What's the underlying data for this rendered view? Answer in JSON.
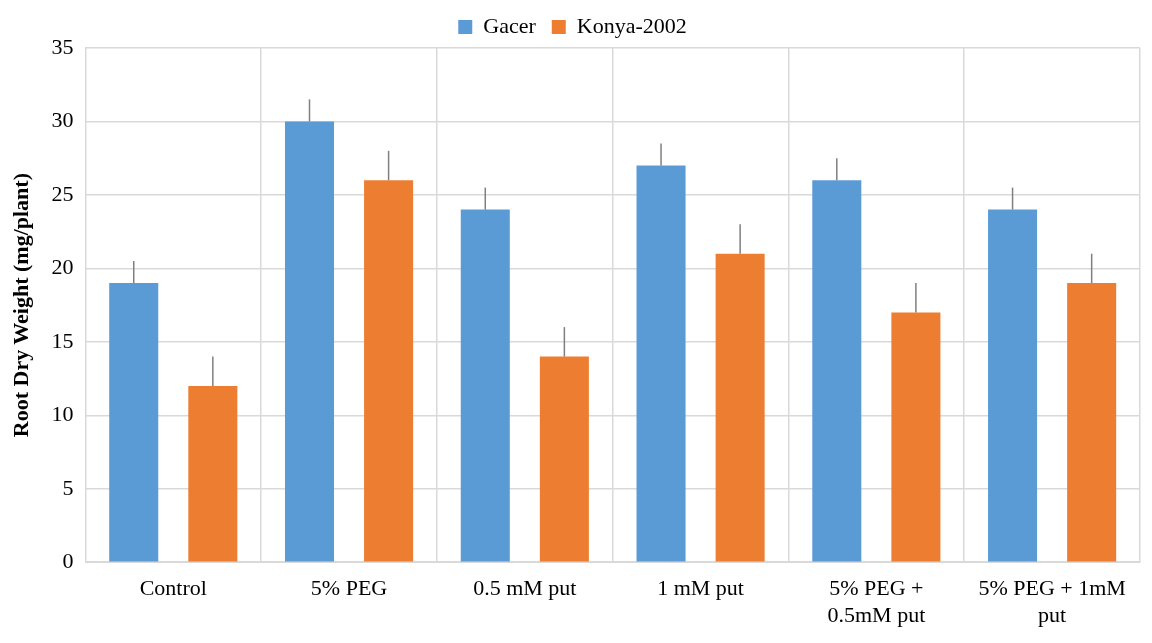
{
  "chart_data": {
    "type": "bar",
    "ylabel": "Root Dry Weight (mg/plant)",
    "categories": [
      "Control",
      "5% PEG",
      "0.5 mM put",
      "1 mM put",
      "5% PEG + 0.5mM put",
      "5% PEG + 1mM put"
    ],
    "series": [
      {
        "name": "Gacer",
        "color": "#5b9bd5",
        "values": [
          19,
          30,
          24,
          27,
          26,
          24
        ],
        "errors": [
          [
            19,
            20.5
          ],
          [
            30,
            31.5
          ],
          [
            24,
            25.5
          ],
          [
            27,
            28.5
          ],
          [
            26,
            27.5
          ],
          [
            24,
            25.5
          ]
        ]
      },
      {
        "name": "Konya-2002",
        "color": "#ed7d31",
        "values": [
          12,
          26,
          14,
          21,
          17,
          19
        ],
        "errors": [
          [
            12,
            14
          ],
          [
            26,
            28
          ],
          [
            14,
            16
          ],
          [
            21,
            23
          ],
          [
            17,
            19
          ],
          [
            19,
            21
          ]
        ]
      }
    ],
    "ylim": [
      0,
      35
    ],
    "yticks": [
      0,
      5,
      10,
      15,
      20,
      25,
      30,
      35
    ],
    "grid": true,
    "legend": "top"
  }
}
